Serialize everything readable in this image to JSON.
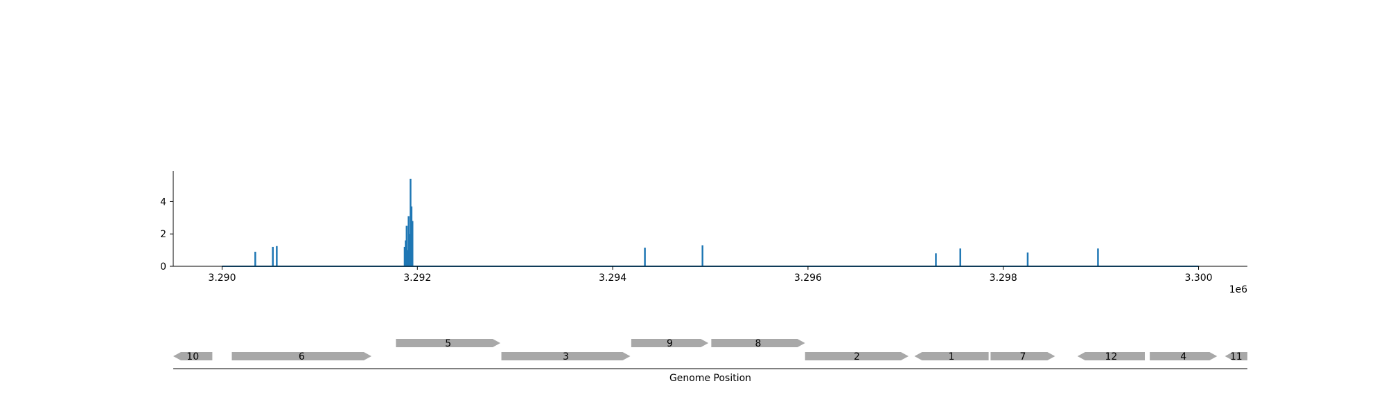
{
  "colors": {
    "signal": "#1f77b4",
    "gene": "#a8a8a8",
    "axis": "#000000",
    "background": "#ffffff"
  },
  "chart_data": [
    {
      "type": "line",
      "title": "",
      "xlabel": "",
      "ylabel": "",
      "xlim": [
        3289500,
        3300500
      ],
      "ylim": [
        0,
        5.9
      ],
      "x_ticks": [
        3290000,
        3292000,
        3294000,
        3296000,
        3298000,
        3300000
      ],
      "x_tick_labels": [
        "3.290",
        "3.292",
        "3.294",
        "3.296",
        "3.298",
        "3.300"
      ],
      "x_offset_label": "1e6",
      "y_ticks": [
        0,
        2,
        4
      ],
      "y_tick_labels": [
        "0",
        "2",
        "4"
      ],
      "series_color": "#1f77b4",
      "baseline_range": [
        3290000,
        3300000
      ],
      "peaks": [
        {
          "x": 3290340,
          "y": 0.9
        },
        {
          "x": 3290520,
          "y": 1.2
        },
        {
          "x": 3290560,
          "y": 1.25
        },
        {
          "x": 3291870,
          "y": 1.2
        },
        {
          "x": 3291880,
          "y": 1.6
        },
        {
          "x": 3291890,
          "y": 2.5
        },
        {
          "x": 3291900,
          "y": 1.0
        },
        {
          "x": 3291910,
          "y": 3.1
        },
        {
          "x": 3291920,
          "y": 2.0
        },
        {
          "x": 3291930,
          "y": 5.4
        },
        {
          "x": 3291940,
          "y": 3.7
        },
        {
          "x": 3291950,
          "y": 2.8
        },
        {
          "x": 3294330,
          "y": 1.15
        },
        {
          "x": 3294920,
          "y": 1.3
        },
        {
          "x": 3297310,
          "y": 0.8
        },
        {
          "x": 3297560,
          "y": 1.1
        },
        {
          "x": 3298250,
          "y": 0.85
        },
        {
          "x": 3298970,
          "y": 1.1
        }
      ]
    },
    {
      "type": "gene_track",
      "title": "",
      "xlabel": "Genome Position",
      "xlim": [
        3289500,
        3300500
      ],
      "genes": [
        {
          "label": "10",
          "start": 3289500,
          "end": 3289900,
          "strand": -1,
          "row": 0
        },
        {
          "label": "6",
          "start": 3290100,
          "end": 3291530,
          "strand": 1,
          "row": 0
        },
        {
          "label": "5",
          "start": 3291780,
          "end": 3292850,
          "strand": 1,
          "row": 1
        },
        {
          "label": "3",
          "start": 3292860,
          "end": 3294180,
          "strand": 1,
          "row": 0
        },
        {
          "label": "9",
          "start": 3294190,
          "end": 3294980,
          "strand": 1,
          "row": 1
        },
        {
          "label": "8",
          "start": 3295010,
          "end": 3295970,
          "strand": 1,
          "row": 1
        },
        {
          "label": "2",
          "start": 3295970,
          "end": 3297030,
          "strand": 1,
          "row": 0
        },
        {
          "label": "1",
          "start": 3297090,
          "end": 3297850,
          "strand": -1,
          "row": 0
        },
        {
          "label": "7",
          "start": 3297870,
          "end": 3298530,
          "strand": 1,
          "row": 0
        },
        {
          "label": "12",
          "start": 3298760,
          "end": 3299450,
          "strand": -1,
          "row": 0
        },
        {
          "label": "4",
          "start": 3299500,
          "end": 3300190,
          "strand": 1,
          "row": 0
        },
        {
          "label": "11",
          "start": 3300270,
          "end": 3300500,
          "strand": -1,
          "row": 0
        }
      ]
    }
  ]
}
